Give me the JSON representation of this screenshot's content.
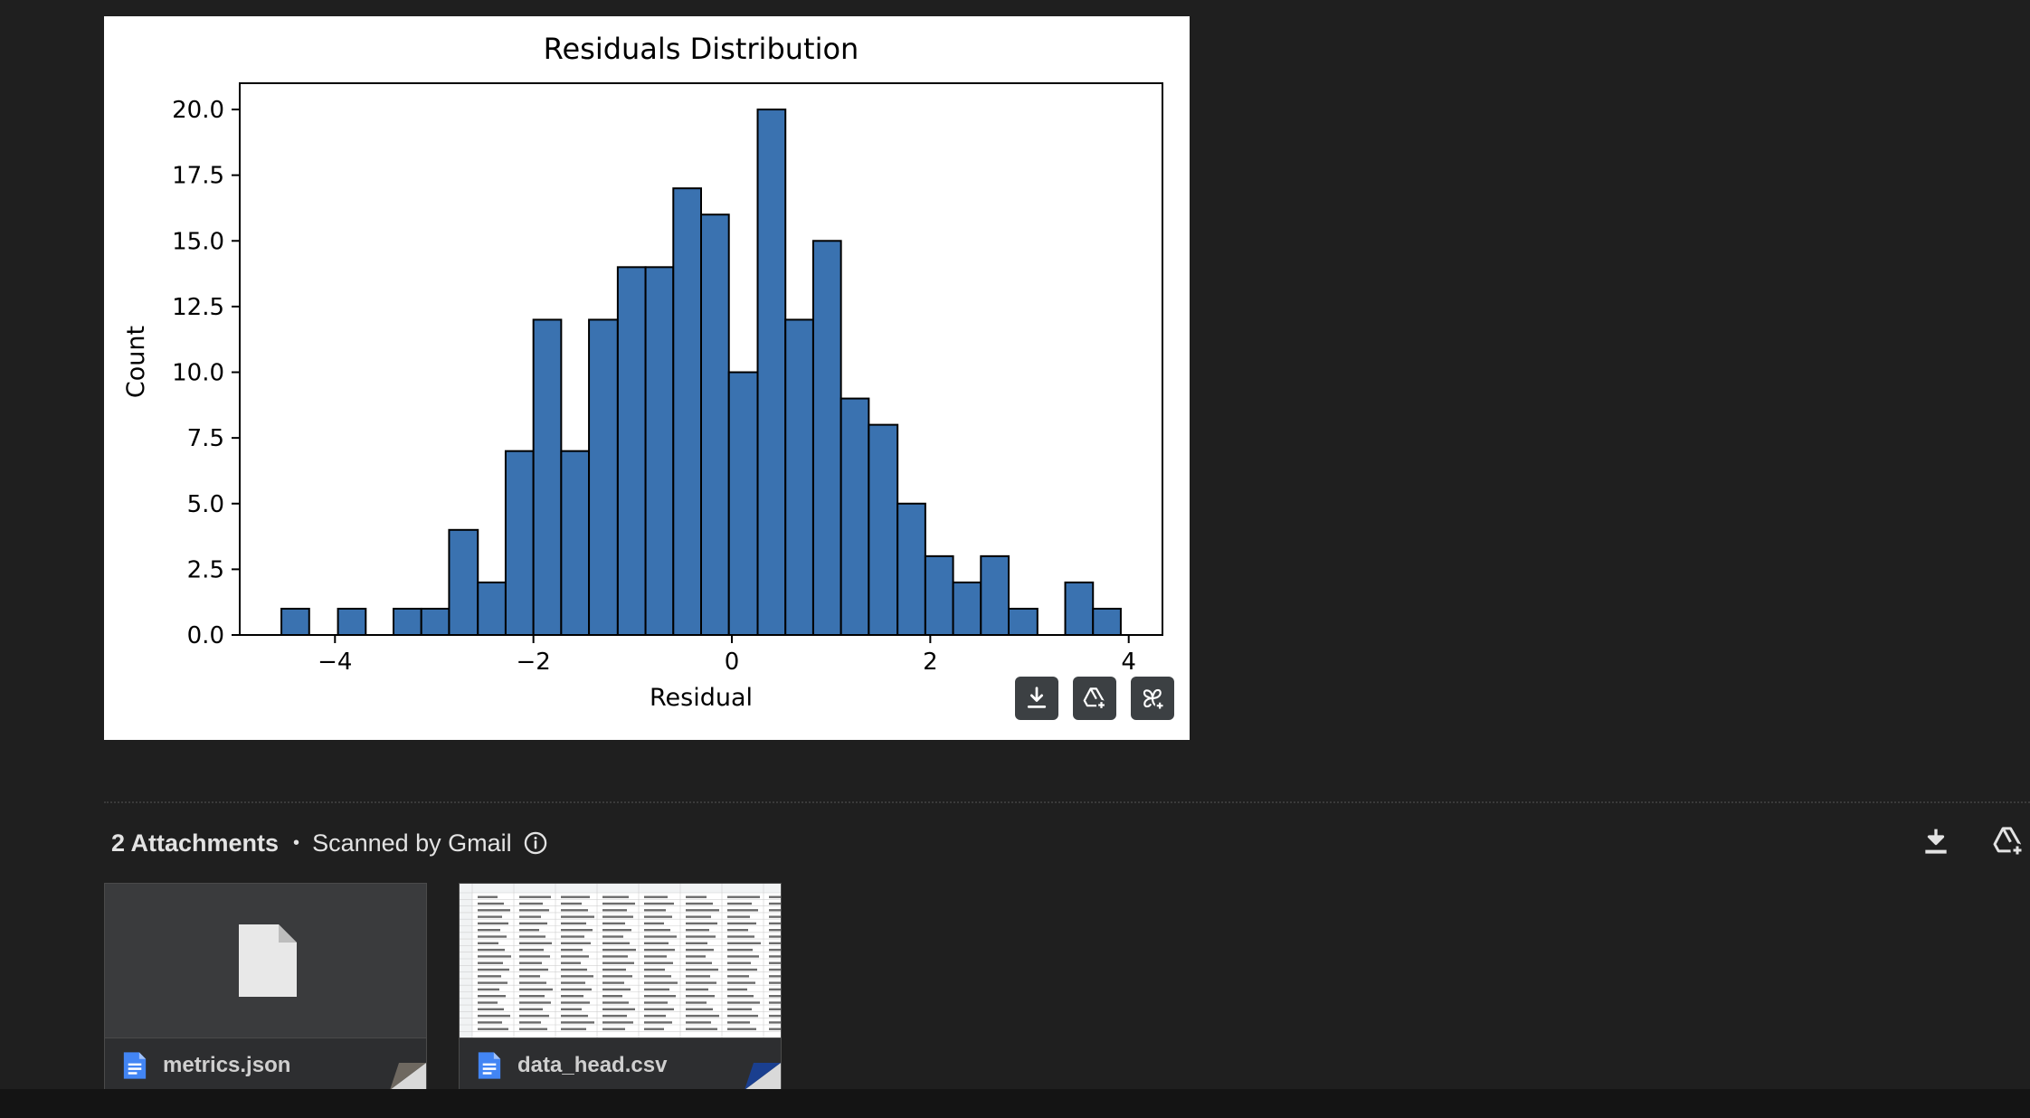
{
  "chart_data": {
    "type": "bar",
    "title": "Residuals Distribution",
    "xlabel": "Residual",
    "ylabel": "Count",
    "xlim": [
      -4.96,
      4.34
    ],
    "ylim": [
      0,
      21
    ],
    "xticks": [
      -4,
      -2,
      0,
      2,
      4
    ],
    "xtick_labels": [
      "−4",
      "−2",
      "0",
      "2",
      "4"
    ],
    "yticks": [
      0,
      2.5,
      5,
      7.5,
      10,
      12.5,
      15,
      17.5,
      20
    ],
    "ytick_labels": [
      "0.0",
      "2.5",
      "5.0",
      "7.5",
      "10.0",
      "12.5",
      "15.0",
      "17.5",
      "20.0"
    ],
    "bin_edges": [
      -4.54,
      -4.26,
      -3.97,
      -3.69,
      -3.41,
      -3.13,
      -2.85,
      -2.56,
      -2.28,
      -2.0,
      -1.72,
      -1.44,
      -1.15,
      -0.87,
      -0.59,
      -0.31,
      -0.03,
      0.26,
      0.54,
      0.82,
      1.1,
      1.38,
      1.67,
      1.95,
      2.23,
      2.51,
      2.79,
      3.08,
      3.36,
      3.64,
      3.92
    ],
    "values": [
      1,
      0,
      1,
      0,
      1,
      1,
      4,
      2,
      7,
      12,
      7,
      12,
      14,
      14,
      17,
      16,
      10,
      20,
      12,
      15,
      9,
      8,
      5,
      3,
      2,
      3,
      1,
      0,
      2,
      1
    ],
    "bar_color": "#3a72b0",
    "grid": false
  },
  "chart_buttons": {
    "download_icon": "download-icon",
    "drive_icon": "add-to-drive-icon",
    "photos_icon": "add-to-photos-icon"
  },
  "attachments": {
    "count_label": "2 Attachments",
    "scan_label": "Scanned by Gmail",
    "download_all_icon": "download-icon",
    "save_drive_icon": "add-to-drive-icon",
    "files": [
      {
        "name": "metrics.json",
        "icon": "google-docs-icon",
        "thumb": "generic-file-icon"
      },
      {
        "name": "data_head.csv",
        "icon": "google-docs-icon",
        "thumb": "spreadsheet-preview"
      }
    ]
  },
  "colors": {
    "page_bg": "#1f1f1f",
    "accent_blue": "#4285f4",
    "bar": "#3a72b0"
  }
}
